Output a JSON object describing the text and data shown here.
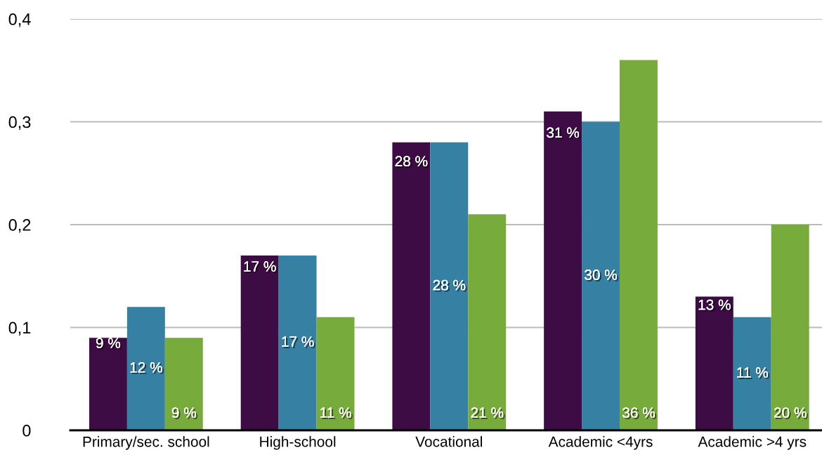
{
  "chart_data": {
    "type": "bar",
    "categories": [
      "Primary/sec. school",
      "High-school",
      "Vocational",
      "Academic <4yrs",
      "Academic >4 yrs"
    ],
    "series": [
      {
        "color": "#3d0c45",
        "values": [
          0.09,
          0.17,
          0.28,
          0.31,
          0.13
        ],
        "value_labels": [
          "9 %",
          "17 %",
          "28 %",
          "31 %",
          "13 %"
        ]
      },
      {
        "color": "#3680a4",
        "values": [
          0.12,
          0.17,
          0.28,
          0.3,
          0.11
        ],
        "value_labels": [
          "12 %",
          "17 %",
          "28 %",
          "30 %",
          "11 %"
        ]
      },
      {
        "color": "#77ac3c",
        "values": [
          0.09,
          0.11,
          0.21,
          0.36,
          0.2
        ],
        "value_labels": [
          "9 %",
          "11 %",
          "21 %",
          "36 %",
          "20 %"
        ]
      }
    ],
    "ylim": [
      0,
      0.4
    ],
    "yticks": [
      0,
      {
        "value": 0.1,
        "label": "0,1"
      },
      {
        "value": 0.2,
        "label": "0,2"
      },
      {
        "value": 0.3,
        "label": "0,3"
      },
      {
        "value": 0.4,
        "label": "0,4"
      }
    ],
    "grid": "y"
  }
}
